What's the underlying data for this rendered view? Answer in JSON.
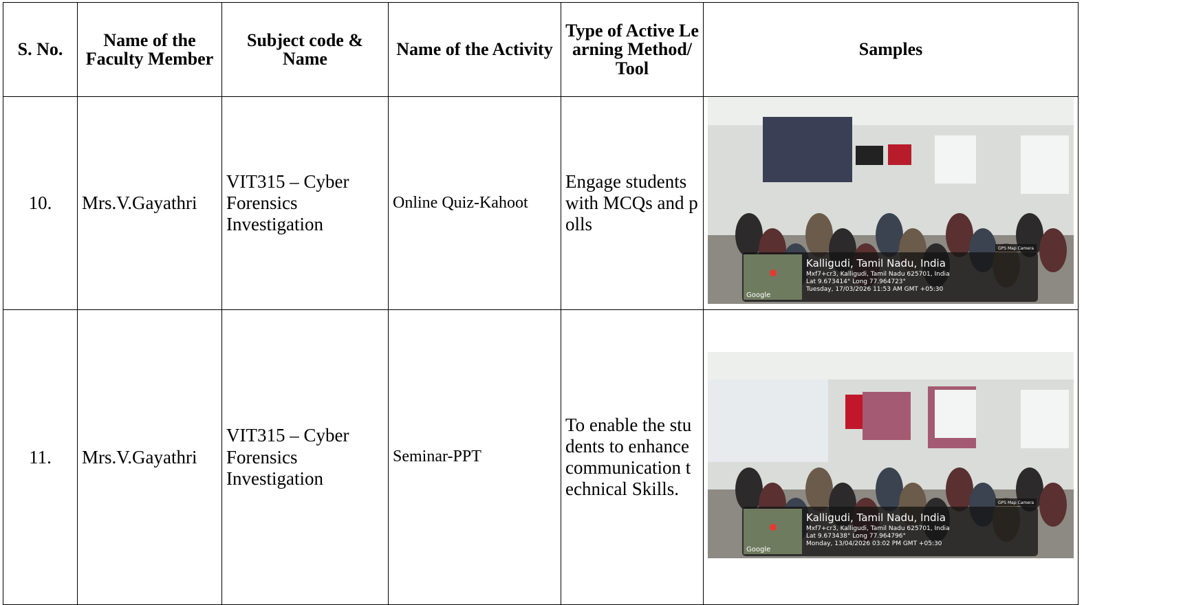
{
  "table": {
    "header": [
      "S. No.",
      "Name of the Faculty Member",
      "Subject code & Name",
      "Name of the Activity",
      "Type of Active Learning Method/ Tool",
      "Samples"
    ],
    "rows": [
      {
        "sno": "10.",
        "faculty": "Mrs.V.Gayathri",
        "subject": "VIT315 – Cyber Forensics Investigation",
        "activity": "Online Quiz-Kahoot",
        "method": "Engage students with MCQs and polls",
        "photo": {
          "badge": "GPS Map Camera",
          "place": "Kalligudi, Tamil Nadu, India",
          "address": "Mxf7+cr3, Kalligudi, Tamil Nadu 625701, India",
          "coords": "Lat 9.673414° Long 77.964723°",
          "timestamp": "Tuesday, 17/03/2026 11:53 AM GMT +05:30",
          "logo": "Google"
        }
      },
      {
        "sno": "11.",
        "faculty": "Mrs.V.Gayathri",
        "subject": "VIT315 – Cyber Forensics Investigation",
        "activity": "Seminar-PPT",
        "method": "To enable the students to enhance communication technical Skills.",
        "photo": {
          "badge": "GPS Map Camera",
          "place": "Kalligudi, Tamil Nadu, India",
          "address": "Mxf7+cr3, Kalligudi, Tamil Nadu 625701, India",
          "coords": "Lat 9.673438° Long 77.964796°",
          "timestamp": "Monday, 13/04/2026 03:02 PM GMT +05:30",
          "logo": "Google"
        }
      }
    ]
  }
}
